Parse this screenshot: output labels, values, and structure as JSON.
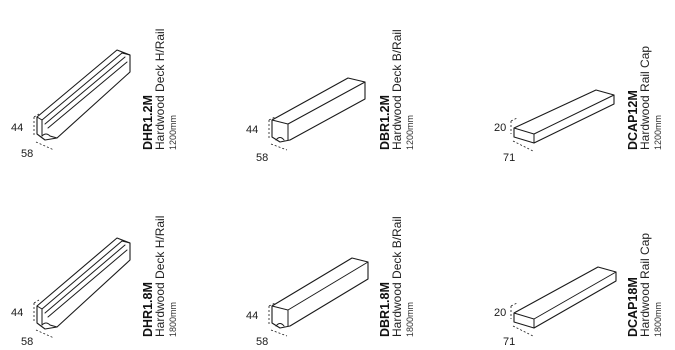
{
  "products": [
    {
      "code": "DHR1.2M",
      "name": "Hardwood Deck H/Rail",
      "length": "1200mm",
      "height": "44",
      "width": "58",
      "profile": "handrail"
    },
    {
      "code": "DBR1.2M",
      "name": "Hardwood Deck B/Rail",
      "length": "1200mm",
      "height": "44",
      "width": "58",
      "profile": "baserail"
    },
    {
      "code": "DCAP12M",
      "name": "Hardwood Rail Cap",
      "length": "1200mm",
      "height": "20",
      "width": "71",
      "profile": "cap"
    },
    {
      "code": "DHR1.8M",
      "name": "Hardwood Deck H/Rail",
      "length": "1800mm",
      "height": "44",
      "width": "58",
      "profile": "handrail"
    },
    {
      "code": "DBR1.8M",
      "name": "Hardwood Deck B/Rail",
      "length": "1800mm",
      "height": "44",
      "width": "58",
      "profile": "baserail"
    },
    {
      "code": "DCAP18M",
      "name": "Hardwood Rail Cap",
      "length": "1800mm",
      "height": "20",
      "width": "71",
      "profile": "cap"
    }
  ]
}
